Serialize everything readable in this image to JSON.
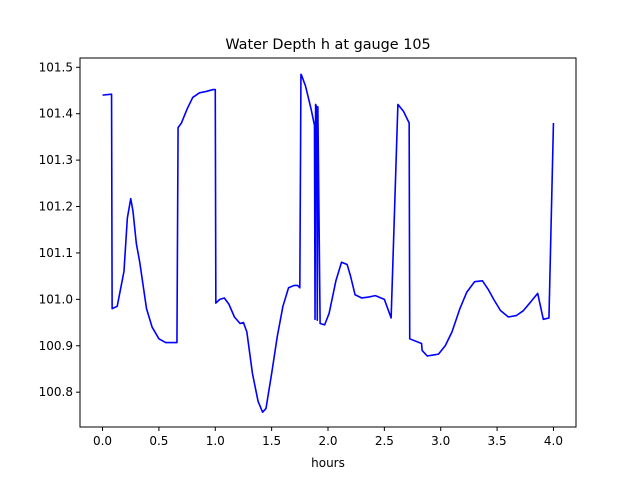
{
  "chart_data": {
    "type": "line",
    "title": "Water Depth h at gauge 105",
    "xlabel": "hours",
    "ylabel": "",
    "xlim": [
      -0.2,
      4.2
    ],
    "ylim": [
      100.725,
      101.52
    ],
    "grid": false,
    "x_ticks": [
      {
        "value": 0.0,
        "label": "0.0"
      },
      {
        "value": 0.5,
        "label": "0.5"
      },
      {
        "value": 1.0,
        "label": "1.0"
      },
      {
        "value": 1.5,
        "label": "1.5"
      },
      {
        "value": 2.0,
        "label": "2.0"
      },
      {
        "value": 2.5,
        "label": "2.5"
      },
      {
        "value": 3.0,
        "label": "3.0"
      },
      {
        "value": 3.5,
        "label": "3.5"
      },
      {
        "value": 4.0,
        "label": "4.0"
      }
    ],
    "y_ticks": [
      {
        "value": 100.8,
        "label": "100.8"
      },
      {
        "value": 100.9,
        "label": "100.9"
      },
      {
        "value": 101.0,
        "label": "101.0"
      },
      {
        "value": 101.1,
        "label": "101.1"
      },
      {
        "value": 101.2,
        "label": "101.2"
      },
      {
        "value": 101.3,
        "label": "101.3"
      },
      {
        "value": 101.4,
        "label": "101.4"
      },
      {
        "value": 101.5,
        "label": "101.5"
      }
    ],
    "series": [
      {
        "color": "#0000ff",
        "x": [
          0.0,
          0.08,
          0.085,
          0.13,
          0.19,
          0.22,
          0.25,
          0.27,
          0.3,
          0.33,
          0.39,
          0.44,
          0.5,
          0.56,
          0.62,
          0.66,
          0.67,
          0.7,
          0.75,
          0.8,
          0.86,
          0.92,
          0.98,
          1.0,
          1.005,
          1.04,
          1.08,
          1.12,
          1.17,
          1.22,
          1.25,
          1.28,
          1.33,
          1.38,
          1.42,
          1.45,
          1.5,
          1.55,
          1.6,
          1.65,
          1.7,
          1.73,
          1.75,
          1.76,
          1.765,
          1.8,
          1.85,
          1.88,
          1.885,
          1.89,
          1.9,
          1.905,
          1.91,
          1.93,
          1.97,
          2.01,
          2.07,
          2.12,
          2.17,
          2.2,
          2.24,
          2.3,
          2.36,
          2.42,
          2.5,
          2.56,
          2.62,
          2.67,
          2.72,
          2.725,
          2.83,
          2.835,
          2.88,
          2.93,
          2.98,
          3.04,
          3.1,
          3.17,
          3.23,
          3.3,
          3.37,
          3.42,
          3.47,
          3.53,
          3.6,
          3.67,
          3.73,
          3.8,
          3.86,
          3.91,
          3.96,
          4.0
        ],
        "values": [
          101.44,
          101.442,
          100.98,
          100.985,
          101.06,
          101.175,
          101.217,
          101.19,
          101.12,
          101.08,
          100.98,
          100.94,
          100.915,
          100.907,
          100.907,
          100.907,
          101.37,
          101.38,
          101.41,
          101.435,
          101.445,
          101.448,
          101.452,
          101.452,
          100.992,
          101.0,
          101.003,
          100.99,
          100.962,
          100.948,
          100.95,
          100.93,
          100.84,
          100.78,
          100.757,
          100.765,
          100.84,
          100.92,
          100.985,
          101.025,
          101.03,
          101.03,
          101.025,
          101.485,
          101.483,
          101.46,
          101.41,
          101.375,
          100.957,
          101.42,
          101.415,
          100.955,
          101.415,
          100.948,
          100.945,
          100.97,
          101.04,
          101.08,
          101.075,
          101.05,
          101.01,
          101.003,
          101.005,
          101.008,
          101.0,
          100.96,
          101.42,
          101.405,
          101.38,
          100.915,
          100.905,
          100.89,
          100.878,
          100.88,
          100.882,
          100.9,
          100.93,
          100.98,
          101.015,
          101.038,
          101.04,
          101.022,
          101.0,
          100.976,
          100.962,
          100.965,
          100.975,
          100.995,
          101.013,
          100.957,
          100.96,
          101.38
        ]
      }
    ]
  }
}
